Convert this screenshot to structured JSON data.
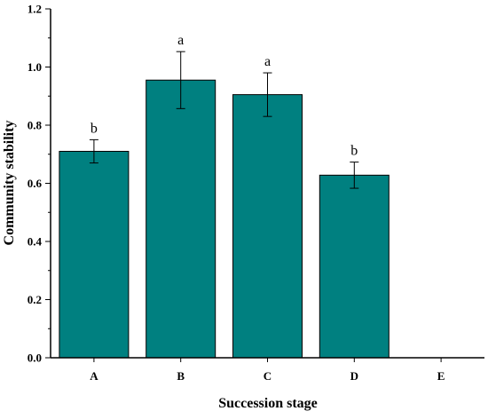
{
  "chart_data": {
    "type": "bar",
    "title": "",
    "xlabel": "Succession stage",
    "ylabel": "Community stability",
    "categories": [
      "A",
      "B",
      "C",
      "D",
      "E"
    ],
    "values": [
      0.71,
      0.955,
      0.905,
      0.628,
      null
    ],
    "error": [
      0.04,
      0.098,
      0.075,
      0.045,
      null
    ],
    "significance": [
      "b",
      "a",
      "a",
      "b",
      ""
    ],
    "ylim": [
      0,
      1.2
    ],
    "yticks": [
      0.0,
      0.2,
      0.4,
      0.6,
      0.8,
      1.0,
      1.2
    ],
    "ytick_labels": [
      "0.0",
      "0.2",
      "0.4",
      "0.6",
      "0.8",
      "1.0",
      "1.2"
    ],
    "grid": false,
    "bar_color": "#008080"
  }
}
